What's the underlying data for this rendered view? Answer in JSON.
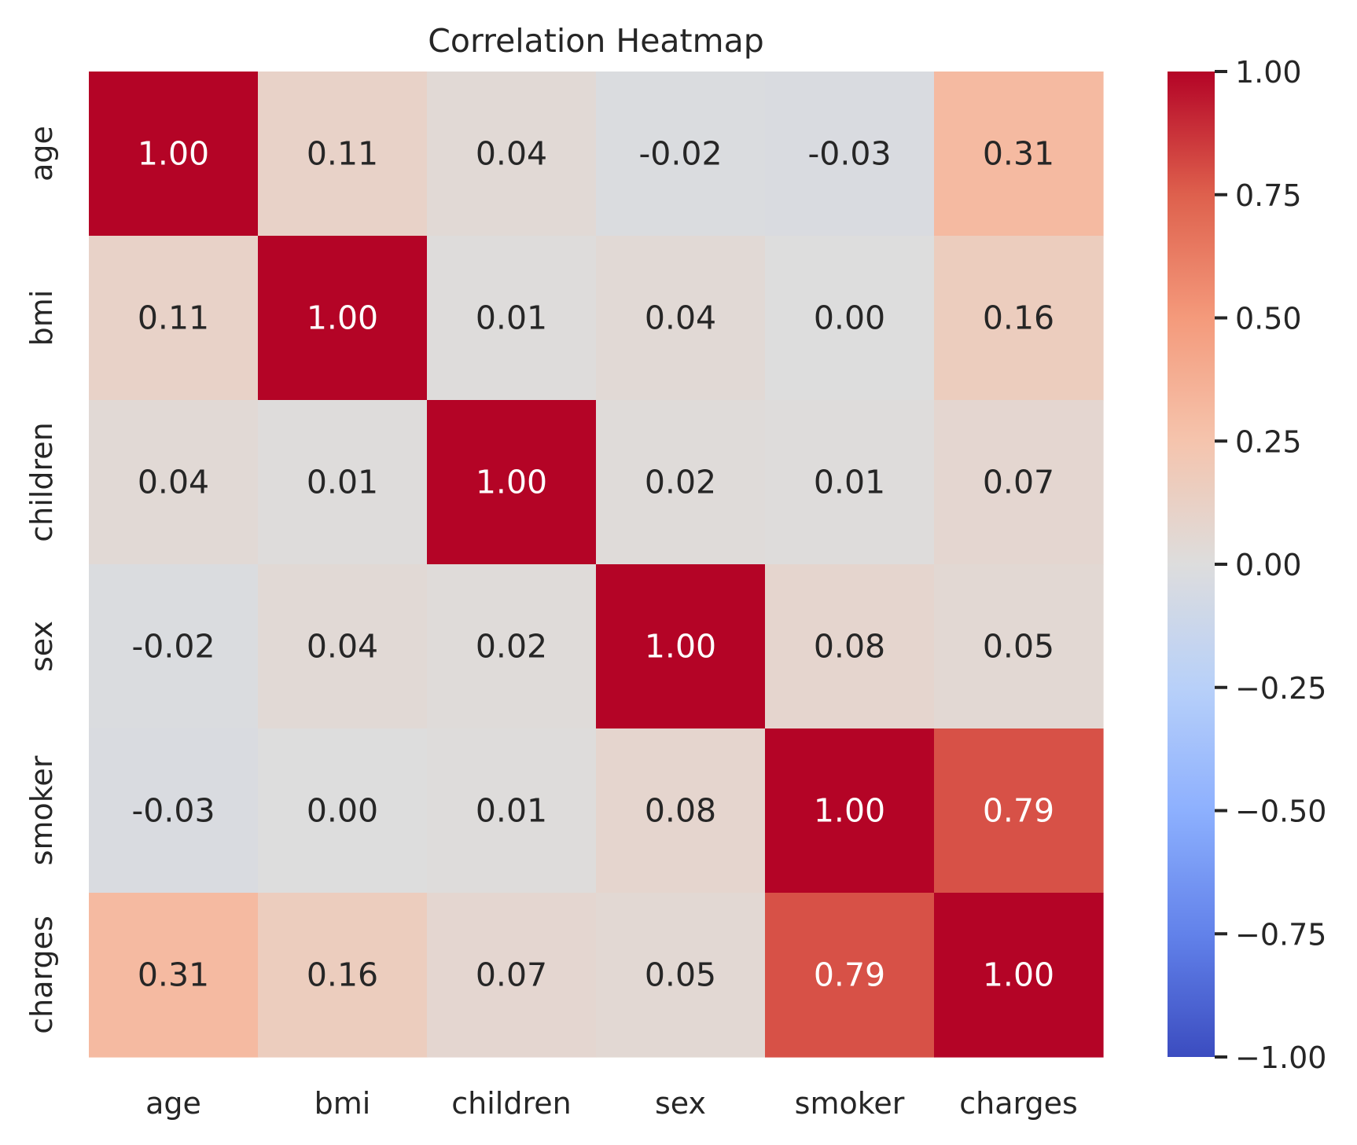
{
  "chart_data": {
    "type": "heatmap",
    "title": "Correlation Heatmap",
    "xlabel": "",
    "ylabel": "",
    "rows": [
      "age",
      "bmi",
      "children",
      "sex",
      "smoker",
      "charges"
    ],
    "columns": [
      "age",
      "bmi",
      "children",
      "sex",
      "smoker",
      "charges"
    ],
    "values": [
      [
        1.0,
        0.11,
        0.04,
        -0.02,
        -0.03,
        0.31
      ],
      [
        0.11,
        1.0,
        0.01,
        0.04,
        0.0,
        0.16
      ],
      [
        0.04,
        0.01,
        1.0,
        0.02,
        0.01,
        0.07
      ],
      [
        -0.02,
        0.04,
        0.02,
        1.0,
        0.08,
        0.05
      ],
      [
        -0.03,
        0.0,
        0.01,
        0.08,
        1.0,
        0.79
      ],
      [
        0.31,
        0.16,
        0.07,
        0.05,
        0.79,
        1.0
      ]
    ],
    "annotations": [
      [
        "1.00",
        "0.11",
        "0.04",
        "-0.02",
        "-0.03",
        "0.31"
      ],
      [
        "0.11",
        "1.00",
        "0.01",
        "0.04",
        "0.00",
        "0.16"
      ],
      [
        "0.04",
        "0.01",
        "1.00",
        "0.02",
        "0.01",
        "0.07"
      ],
      [
        "-0.02",
        "0.04",
        "0.02",
        "1.00",
        "0.08",
        "0.05"
      ],
      [
        "-0.03",
        "0.00",
        "0.01",
        "0.08",
        "1.00",
        "0.79"
      ],
      [
        "0.31",
        "0.16",
        "0.07",
        "0.05",
        "0.79",
        "1.00"
      ]
    ],
    "colorbar": {
      "colormap": "coolwarm",
      "range": [
        -1.0,
        1.0
      ],
      "ticks": [
        1.0,
        0.75,
        0.5,
        0.25,
        0.0,
        -0.25,
        -0.5,
        -0.75,
        -1.0
      ],
      "tick_labels": [
        "1.00",
        "0.75",
        "0.50",
        "0.25",
        "0.00",
        "−0.25",
        "−0.50",
        "−0.75",
        "−1.00"
      ]
    },
    "grid": false,
    "legend": "colorbar-right"
  }
}
